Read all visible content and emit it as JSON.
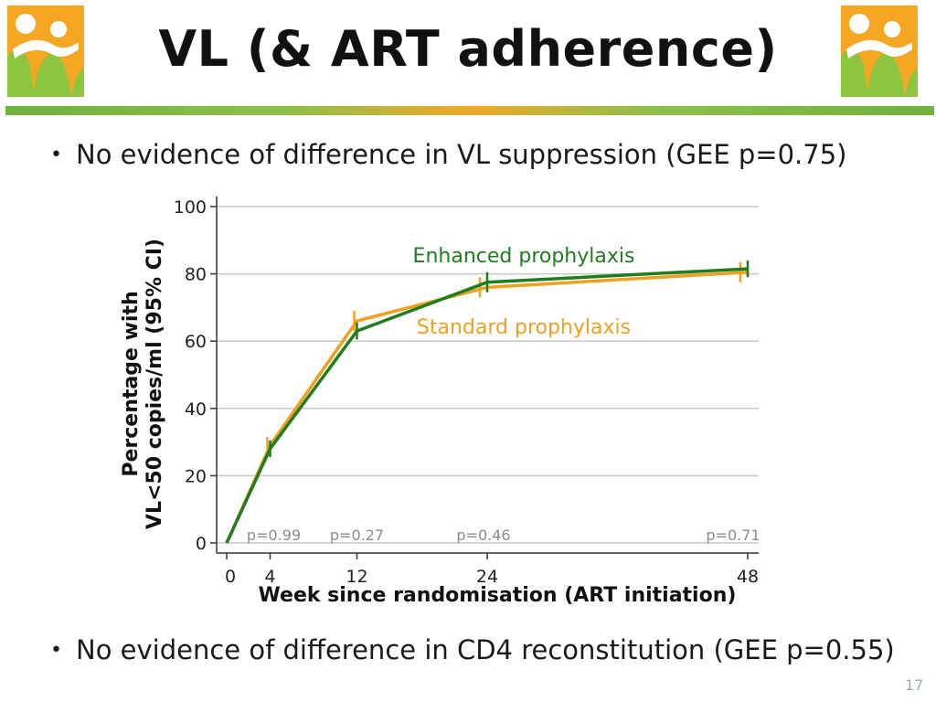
{
  "slide": {
    "title": "VL (& ART adherence)",
    "bullets": [
      "No evidence of difference in VL suppression (GEE p=0.75)",
      "No evidence of difference in CD4 reconstitution (GEE p=0.55)"
    ],
    "slide_number": "17"
  },
  "colors": {
    "enhanced": "#1f7d1f",
    "standard": "#f0a020",
    "pvalue": "#8c8c8c",
    "grid": "#c8c8c8"
  },
  "chart_data": {
    "type": "line",
    "xlabel": "Week since randomisation (ART initiation)",
    "ylabel_lines": [
      "Percentage with",
      "VL<50 copies/ml (95% CI)"
    ],
    "xlim": [
      0,
      48
    ],
    "ylim": [
      0,
      100
    ],
    "x_ticks": [
      0,
      4,
      12,
      24,
      48
    ],
    "y_ticks": [
      0,
      20,
      40,
      60,
      80,
      100
    ],
    "grid": true,
    "series": [
      {
        "name": "Enhanced prophylaxis",
        "x": [
          0,
          4,
          12,
          24,
          48
        ],
        "y": [
          0,
          28,
          63,
          77.5,
          81.5
        ],
        "ci": [
          null,
          [
            25.5,
            30.5
          ],
          [
            60.5,
            65.5
          ],
          [
            74.5,
            80.5
          ],
          [
            79,
            84
          ]
        ]
      },
      {
        "name": "Standard prophylaxis",
        "x": [
          0,
          4,
          12,
          24,
          48
        ],
        "y": [
          0,
          29,
          66,
          76,
          80.5
        ],
        "ci": [
          null,
          [
            26.5,
            31.5
          ],
          [
            63,
            69
          ],
          [
            73,
            79
          ],
          [
            77.5,
            83.5
          ]
        ]
      }
    ],
    "annotations": [
      {
        "text": "p=0.99",
        "x": 4
      },
      {
        "text": "p=0.27",
        "x": 12
      },
      {
        "text": "p=0.46",
        "x": 24
      },
      {
        "text": "p=0.71",
        "x": 48
      }
    ]
  }
}
